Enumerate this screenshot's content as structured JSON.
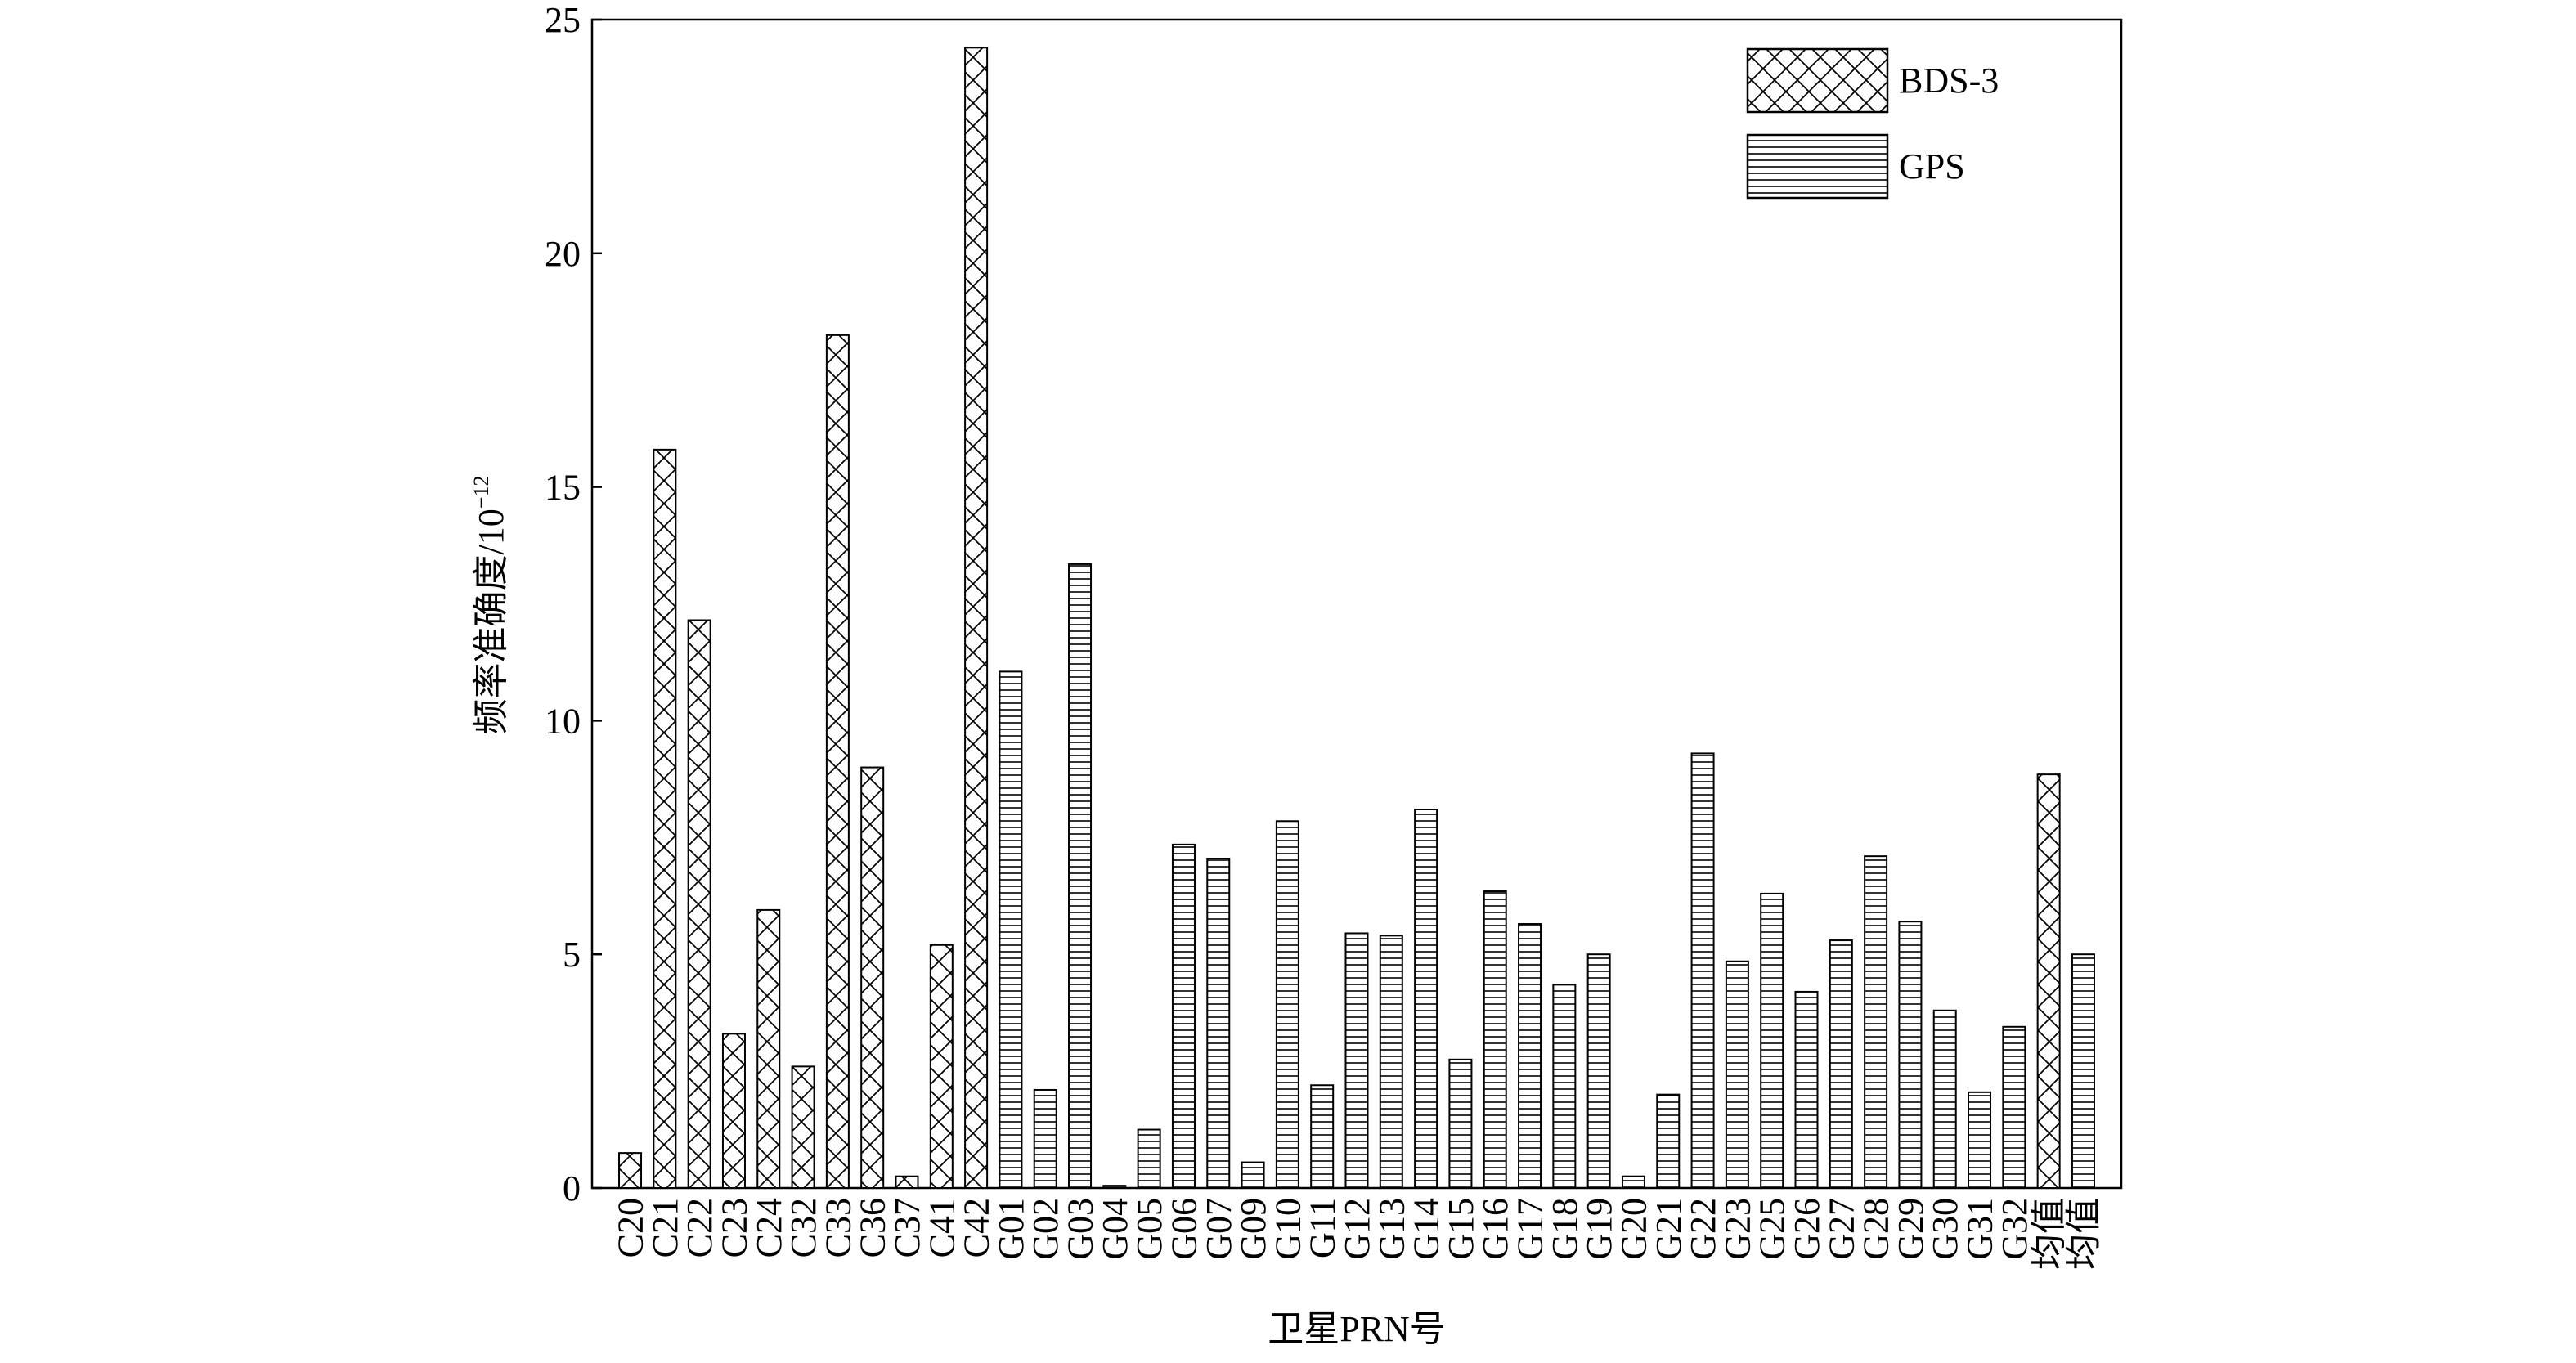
{
  "chart_data": {
    "type": "bar",
    "ylabel": "频率准确度/10",
    "ylabel_exponent": "−12",
    "xlabel": "卫星PRN号",
    "categories": [
      "C20",
      "C21",
      "C22",
      "C23",
      "C24",
      "C32",
      "C33",
      "C36",
      "C37",
      "C41",
      "C42",
      "G01",
      "G02",
      "G03",
      "G04",
      "G05",
      "G06",
      "G07",
      "G09",
      "G10",
      "G11",
      "G12",
      "G13",
      "G14",
      "G15",
      "G16",
      "G17",
      "G18",
      "G19",
      "G20",
      "G21",
      "G22",
      "G23",
      "G25",
      "G26",
      "G27",
      "G28",
      "G29",
      "G30",
      "G31",
      "G32",
      "均值",
      "均值"
    ],
    "series": [
      {
        "name": "BDS-3",
        "color": "#000000",
        "pattern": "crosshatch",
        "values": [
          0.75,
          15.8,
          12.15,
          3.3,
          5.95,
          2.6,
          18.25,
          9.0,
          0.25,
          5.2,
          24.4,
          null,
          null,
          null,
          null,
          null,
          null,
          null,
          null,
          null,
          null,
          null,
          null,
          null,
          null,
          null,
          null,
          null,
          null,
          null,
          null,
          null,
          null,
          null,
          null,
          null,
          null,
          null,
          null,
          null,
          null,
          8.85,
          null
        ]
      },
      {
        "name": "GPS",
        "color": "#000000",
        "pattern": "horizontal",
        "values": [
          null,
          null,
          null,
          null,
          null,
          null,
          null,
          null,
          null,
          null,
          null,
          11.05,
          2.1,
          13.35,
          0.05,
          1.25,
          7.35,
          7.05,
          0.55,
          7.85,
          2.2,
          5.45,
          5.4,
          8.1,
          2.75,
          6.35,
          5.65,
          4.35,
          5.0,
          0.25,
          2.0,
          9.3,
          4.85,
          6.3,
          4.2,
          5.3,
          7.1,
          5.7,
          3.8,
          2.05,
          3.45,
          null,
          5.0
        ]
      }
    ],
    "ylim": [
      0,
      25
    ],
    "yticks": [
      0,
      5,
      10,
      15,
      20,
      25
    ],
    "grid": false,
    "legend": "upper right"
  }
}
